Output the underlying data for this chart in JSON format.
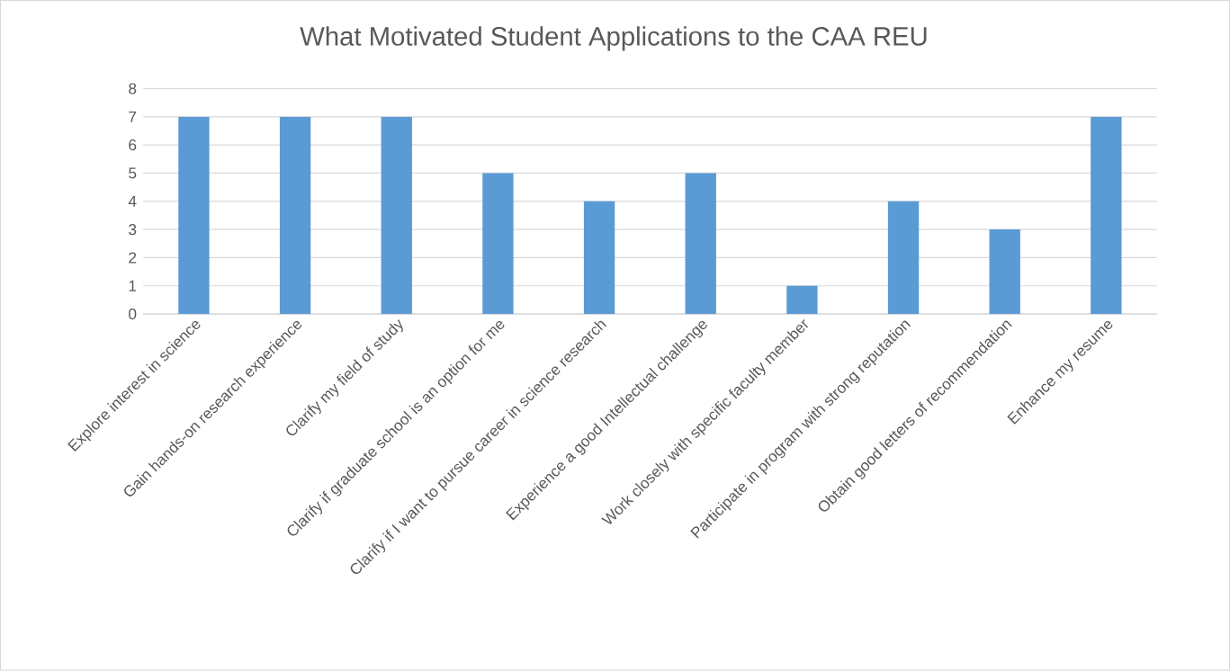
{
  "chart_data": {
    "type": "bar",
    "title": "What Motivated Student Applications to the CAA REU",
    "categories": [
      "Explore interest in science",
      "Gain hands-on research experience",
      "Clarify my field of study",
      "Clarify if graduate school is an option for me",
      "Clarify if I want to pursue career in science research",
      "Experience a good Intellectual challenge",
      "Work closely with specific faculty member",
      "Participate in program with strong reputation",
      "Obtain good letters of recommendation",
      "Enhance my resume"
    ],
    "values": [
      7,
      7,
      7,
      5,
      4,
      5,
      1,
      4,
      3,
      7
    ],
    "color": "#5b9bd5",
    "ylim": [
      0,
      8
    ],
    "yticks": [
      0,
      1,
      2,
      3,
      4,
      5,
      6,
      7,
      8
    ],
    "grid": "y"
  }
}
